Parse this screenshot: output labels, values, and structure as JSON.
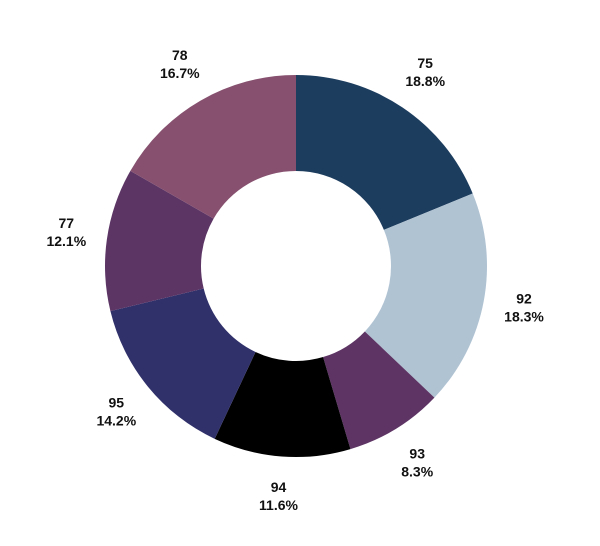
{
  "chart_data": {
    "type": "donut",
    "categories": [
      "75",
      "92",
      "93",
      "94",
      "95",
      "77",
      "78"
    ],
    "values": [
      18.8,
      18.3,
      8.3,
      11.6,
      14.2,
      12.1,
      16.7
    ],
    "value_labels": [
      "18.8%",
      "18.3%",
      "8.3%",
      "11.6%",
      "14.2%",
      "12.1%",
      "16.7%"
    ],
    "colors": [
      "#1d3d5f",
      "#b0c3d3",
      "#5d3464",
      "#000000",
      "#30306b",
      "#5c3565",
      "#86506e"
    ]
  }
}
